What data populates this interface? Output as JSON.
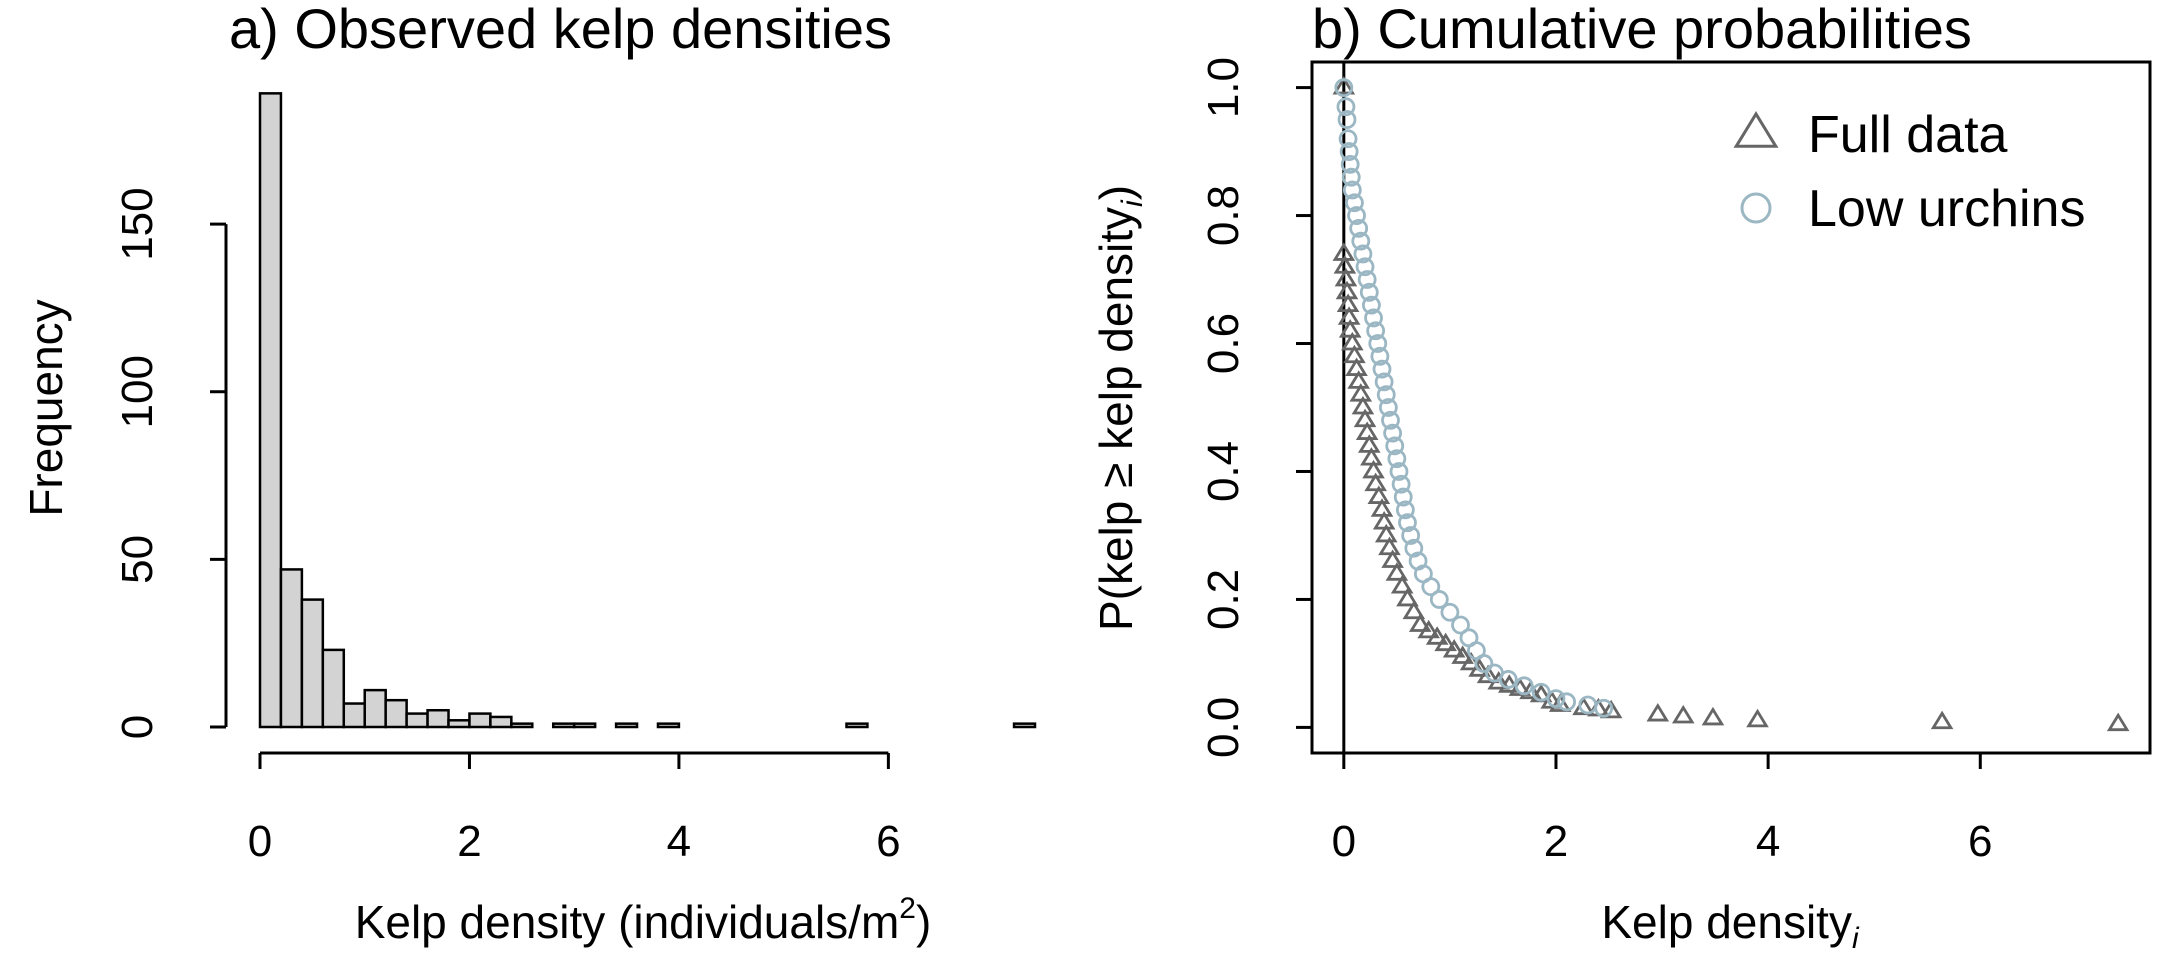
{
  "chart_data": [
    {
      "type": "bar",
      "title": "a) Observed kelp densities",
      "xlabel": {
        "main": "Kelp density (individuals/m",
        "sup": "2",
        "tail": ")"
      },
      "ylabel": "Frequency",
      "xlim": [
        0,
        7.4
      ],
      "ylim": [
        0,
        190
      ],
      "xticks": [
        0,
        2,
        4,
        6
      ],
      "yticks": [
        0,
        50,
        100,
        150
      ],
      "bin_width": 0.2,
      "bins": [
        {
          "x0": 0.0,
          "x1": 0.2,
          "count": 189
        },
        {
          "x0": 0.2,
          "x1": 0.4,
          "count": 47
        },
        {
          "x0": 0.4,
          "x1": 0.6,
          "count": 38
        },
        {
          "x0": 0.6,
          "x1": 0.8,
          "count": 23
        },
        {
          "x0": 0.8,
          "x1": 1.0,
          "count": 7
        },
        {
          "x0": 1.0,
          "x1": 1.2,
          "count": 11
        },
        {
          "x0": 1.2,
          "x1": 1.4,
          "count": 8
        },
        {
          "x0": 1.4,
          "x1": 1.6,
          "count": 4
        },
        {
          "x0": 1.6,
          "x1": 1.8,
          "count": 5
        },
        {
          "x0": 1.8,
          "x1": 2.0,
          "count": 2
        },
        {
          "x0": 2.0,
          "x1": 2.2,
          "count": 4
        },
        {
          "x0": 2.2,
          "x1": 2.4,
          "count": 3
        },
        {
          "x0": 2.4,
          "x1": 2.6,
          "count": 1
        },
        {
          "x0": 2.6,
          "x1": 2.8,
          "count": 0
        },
        {
          "x0": 2.8,
          "x1": 3.0,
          "count": 1
        },
        {
          "x0": 3.0,
          "x1": 3.2,
          "count": 1
        },
        {
          "x0": 3.4,
          "x1": 3.6,
          "count": 1
        },
        {
          "x0": 3.8,
          "x1": 4.0,
          "count": 1
        },
        {
          "x0": 5.6,
          "x1": 5.8,
          "count": 1
        },
        {
          "x0": 7.2,
          "x1": 7.4,
          "count": 1
        }
      ],
      "bar_color": "#d3d3d3"
    },
    {
      "type": "scatter",
      "title": "b) Cumulative probabilities",
      "xlabel": {
        "main": "Kelp density",
        "sub": "i"
      },
      "ylabel": {
        "main": "P(kelp ≥ kelp density",
        "sub": "i",
        "tail": ")"
      },
      "xlim": [
        -0.3,
        7.6
      ],
      "ylim": [
        -0.04,
        1.04
      ],
      "xticks": [
        0,
        2,
        4,
        6
      ],
      "yticks": [
        "0.0",
        "0.2",
        "0.4",
        "0.6",
        "0.8",
        "1.0"
      ],
      "vline_x": 0,
      "legend": {
        "position": "top-right"
      },
      "series": [
        {
          "name": "Full data",
          "marker": "triangle",
          "color": "#666666",
          "points": [
            [
              0.0,
              1.0
            ],
            [
              0.0,
              0.74
            ],
            [
              0.01,
              0.72
            ],
            [
              0.02,
              0.7
            ],
            [
              0.03,
              0.68
            ],
            [
              0.04,
              0.66
            ],
            [
              0.05,
              0.64
            ],
            [
              0.06,
              0.62
            ],
            [
              0.08,
              0.6
            ],
            [
              0.1,
              0.58
            ],
            [
              0.12,
              0.56
            ],
            [
              0.14,
              0.54
            ],
            [
              0.16,
              0.52
            ],
            [
              0.18,
              0.5
            ],
            [
              0.2,
              0.48
            ],
            [
              0.22,
              0.46
            ],
            [
              0.24,
              0.44
            ],
            [
              0.26,
              0.42
            ],
            [
              0.28,
              0.4
            ],
            [
              0.3,
              0.38
            ],
            [
              0.33,
              0.36
            ],
            [
              0.36,
              0.34
            ],
            [
              0.38,
              0.32
            ],
            [
              0.4,
              0.3
            ],
            [
              0.43,
              0.28
            ],
            [
              0.46,
              0.26
            ],
            [
              0.5,
              0.24
            ],
            [
              0.55,
              0.22
            ],
            [
              0.6,
              0.2
            ],
            [
              0.66,
              0.18
            ],
            [
              0.72,
              0.16
            ],
            [
              0.8,
              0.15
            ],
            [
              0.88,
              0.14
            ],
            [
              0.96,
              0.13
            ],
            [
              1.04,
              0.12
            ],
            [
              1.12,
              0.11
            ],
            [
              1.2,
              0.1
            ],
            [
              1.28,
              0.09
            ],
            [
              1.36,
              0.08
            ],
            [
              1.46,
              0.07
            ],
            [
              1.56,
              0.065
            ],
            [
              1.66,
              0.06
            ],
            [
              1.76,
              0.055
            ],
            [
              1.86,
              0.05
            ],
            [
              1.96,
              0.04
            ],
            [
              2.04,
              0.035
            ],
            [
              2.26,
              0.03
            ],
            [
              2.4,
              0.028
            ],
            [
              2.52,
              0.025
            ],
            [
              2.96,
              0.02
            ],
            [
              3.2,
              0.017
            ],
            [
              3.48,
              0.014
            ],
            [
              3.9,
              0.011
            ],
            [
              5.64,
              0.008
            ],
            [
              7.3,
              0.005
            ]
          ]
        },
        {
          "name": "Low urchins",
          "marker": "circle",
          "color": "#9bb7c3",
          "points": [
            [
              0.0,
              1.0
            ],
            [
              0.02,
              0.97
            ],
            [
              0.03,
              0.95
            ],
            [
              0.04,
              0.92
            ],
            [
              0.05,
              0.9
            ],
            [
              0.06,
              0.88
            ],
            [
              0.07,
              0.86
            ],
            [
              0.08,
              0.84
            ],
            [
              0.1,
              0.82
            ],
            [
              0.12,
              0.8
            ],
            [
              0.14,
              0.78
            ],
            [
              0.16,
              0.76
            ],
            [
              0.18,
              0.74
            ],
            [
              0.2,
              0.72
            ],
            [
              0.22,
              0.7
            ],
            [
              0.24,
              0.68
            ],
            [
              0.26,
              0.66
            ],
            [
              0.28,
              0.64
            ],
            [
              0.3,
              0.62
            ],
            [
              0.32,
              0.6
            ],
            [
              0.34,
              0.58
            ],
            [
              0.36,
              0.56
            ],
            [
              0.38,
              0.54
            ],
            [
              0.4,
              0.52
            ],
            [
              0.42,
              0.5
            ],
            [
              0.44,
              0.48
            ],
            [
              0.46,
              0.46
            ],
            [
              0.48,
              0.44
            ],
            [
              0.5,
              0.42
            ],
            [
              0.52,
              0.4
            ],
            [
              0.54,
              0.38
            ],
            [
              0.56,
              0.36
            ],
            [
              0.58,
              0.34
            ],
            [
              0.6,
              0.32
            ],
            [
              0.63,
              0.3
            ],
            [
              0.66,
              0.28
            ],
            [
              0.7,
              0.26
            ],
            [
              0.75,
              0.24
            ],
            [
              0.82,
              0.22
            ],
            [
              0.9,
              0.2
            ],
            [
              1.0,
              0.18
            ],
            [
              1.1,
              0.16
            ],
            [
              1.18,
              0.14
            ],
            [
              1.25,
              0.12
            ],
            [
              1.32,
              0.1
            ],
            [
              1.42,
              0.085
            ],
            [
              1.55,
              0.075
            ],
            [
              1.7,
              0.065
            ],
            [
              1.86,
              0.055
            ],
            [
              2.0,
              0.045
            ],
            [
              2.1,
              0.04
            ],
            [
              2.3,
              0.035
            ],
            [
              2.45,
              0.03
            ]
          ]
        }
      ]
    }
  ]
}
